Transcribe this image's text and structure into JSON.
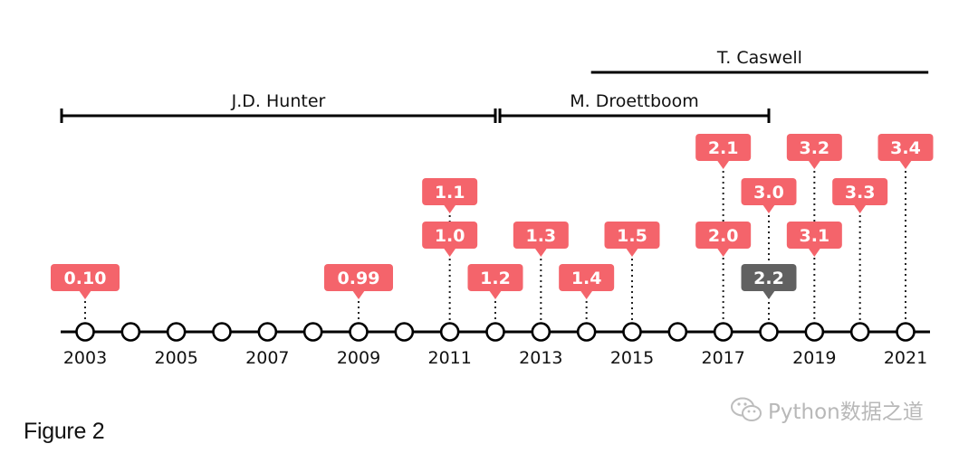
{
  "chart_data": {
    "type": "timeline",
    "title": "",
    "years": [
      2003,
      2004,
      2005,
      2006,
      2007,
      2008,
      2009,
      2010,
      2011,
      2012,
      2013,
      2014,
      2015,
      2016,
      2017,
      2018,
      2019,
      2020,
      2021
    ],
    "year_labels": [
      "2003",
      "2005",
      "2007",
      "2009",
      "2011",
      "2013",
      "2015",
      "2017",
      "2019",
      "2021"
    ],
    "releases": [
      {
        "version": "0.10",
        "year": 2003.0,
        "level": 0,
        "highlight": false
      },
      {
        "version": "0.99",
        "year": 2009.0,
        "level": 0,
        "highlight": false
      },
      {
        "version": "1.0",
        "year": 2011.0,
        "level": 1,
        "highlight": false
      },
      {
        "version": "1.1",
        "year": 2011.0,
        "level": 2,
        "highlight": false
      },
      {
        "version": "1.2",
        "year": 2012.0,
        "level": 0,
        "highlight": false
      },
      {
        "version": "1.3",
        "year": 2013.0,
        "level": 1,
        "highlight": false
      },
      {
        "version": "1.4",
        "year": 2014.0,
        "level": 0,
        "highlight": false
      },
      {
        "version": "1.5",
        "year": 2015.0,
        "level": 1,
        "highlight": false
      },
      {
        "version": "2.0",
        "year": 2017.0,
        "level": 1,
        "highlight": false
      },
      {
        "version": "2.1",
        "year": 2017.0,
        "level": 3,
        "highlight": false
      },
      {
        "version": "2.2",
        "year": 2018.0,
        "level": 0,
        "highlight": true
      },
      {
        "version": "3.0",
        "year": 2018.0,
        "level": 2,
        "highlight": false
      },
      {
        "version": "3.1",
        "year": 2019.0,
        "level": 1,
        "highlight": false
      },
      {
        "version": "3.2",
        "year": 2019.0,
        "level": 3,
        "highlight": false
      },
      {
        "version": "3.3",
        "year": 2020.0,
        "level": 2,
        "highlight": false
      },
      {
        "version": "3.4",
        "year": 2021.0,
        "level": 3,
        "highlight": false
      }
    ],
    "lead_developers": [
      {
        "name": "J.D. Hunter",
        "start": 2003.0,
        "end": 2012.0,
        "row": 0
      },
      {
        "name": "M. Droettboom",
        "start": 2012.1,
        "end": 2018.0,
        "row": 0
      },
      {
        "name": "T. Caswell",
        "start": 2014.1,
        "end": 2021.5,
        "row": 1
      }
    ],
    "colors": {
      "release": "#f4646b",
      "highlight": "#616161",
      "axis": "#000000",
      "label_text": "#ffffff"
    }
  },
  "caption": "Figure 2",
  "watermark": "Python数据之道"
}
